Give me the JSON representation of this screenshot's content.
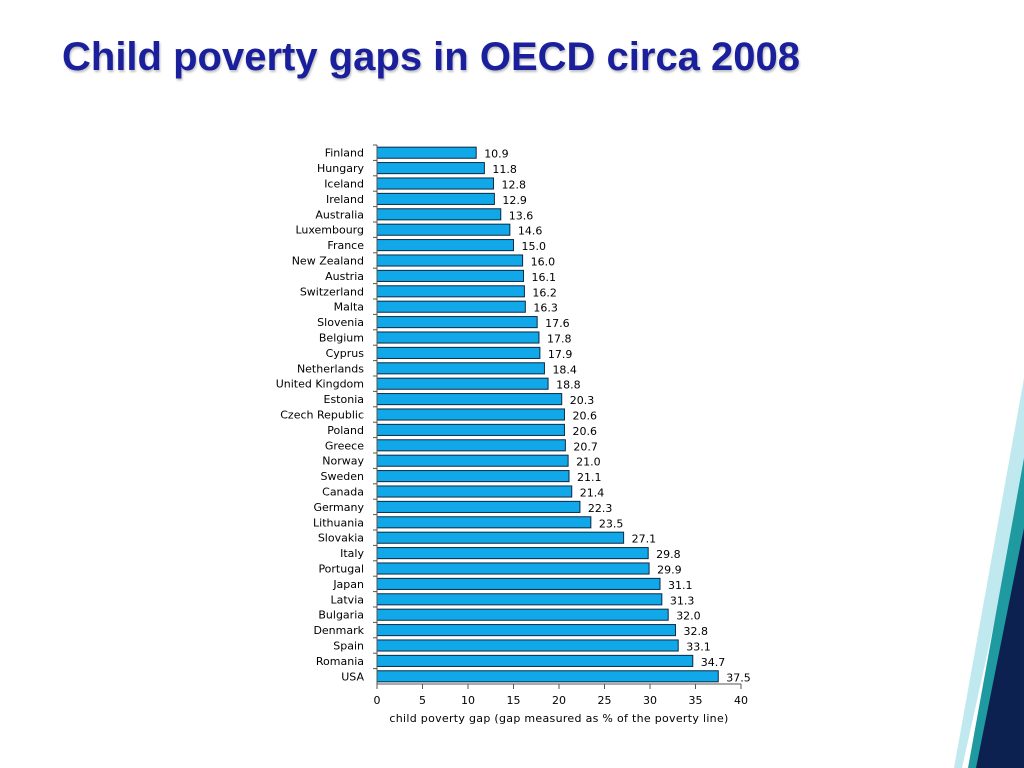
{
  "slide": {
    "title": "Child poverty gaps in OECD circa 2008"
  },
  "colors": {
    "title": "#1a1f9c",
    "bar_fill": "#10a8e8",
    "bar_stroke": "#0b2a45",
    "deco_light": "#bfe9ee",
    "deco_teal": "#1f9aa0",
    "deco_navy": "#0c2150"
  },
  "chart_data": {
    "type": "bar",
    "orientation": "horizontal",
    "categories": [
      "Finland",
      "Hungary",
      "Iceland",
      "Ireland",
      "Australia",
      "Luxembourg",
      "France",
      "New Zealand",
      "Austria",
      "Switzerland",
      "Malta",
      "Slovenia",
      "Belgium",
      "Cyprus",
      "Netherlands",
      "United Kingdom",
      "Estonia",
      "Czech Republic",
      "Poland",
      "Greece",
      "Norway",
      "Sweden",
      "Canada",
      "Germany",
      "Lithuania",
      "Slovakia",
      "Italy",
      "Portugal",
      "Japan",
      "Latvia",
      "Bulgaria",
      "Denmark",
      "Spain",
      "Romania",
      "USA"
    ],
    "values": [
      10.9,
      11.8,
      12.8,
      12.9,
      13.6,
      14.6,
      15.0,
      16.0,
      16.1,
      16.2,
      16.3,
      17.6,
      17.8,
      17.9,
      18.4,
      18.8,
      20.3,
      20.6,
      20.6,
      20.7,
      21.0,
      21.1,
      21.4,
      22.3,
      23.5,
      27.1,
      29.8,
      29.9,
      31.1,
      31.3,
      32.0,
      32.8,
      33.1,
      34.7,
      37.5
    ],
    "value_labels": [
      "10.9",
      "11.8",
      "12.8",
      "12.9",
      "13.6",
      "14.6",
      "15.0",
      "16.0",
      "16.1",
      "16.2",
      "16.3",
      "17.6",
      "17.8",
      "17.9",
      "18.4",
      "18.8",
      "20.3",
      "20.6",
      "20.6",
      "20.7",
      "21.0",
      "21.1",
      "21.4",
      "22.3",
      "23.5",
      "27.1",
      "29.8",
      "29.9",
      "31.1",
      "31.3",
      "32.0",
      "32.8",
      "33.1",
      "34.7",
      "37.5"
    ],
    "xlabel": "child poverty gap (gap measured as % of the poverty line)",
    "ylabel": "",
    "xlim": [
      0,
      40
    ],
    "x_ticks": [
      0,
      5,
      10,
      15,
      20,
      25,
      30,
      35,
      40
    ],
    "x_tick_labels": [
      "0",
      "5",
      "10",
      "15",
      "20",
      "25",
      "30",
      "35",
      "40"
    ],
    "grid": false,
    "legend": "none"
  }
}
